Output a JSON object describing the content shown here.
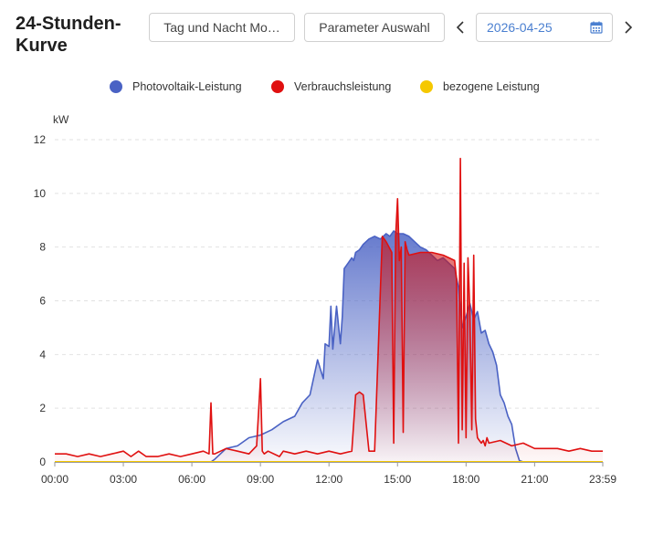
{
  "header": {
    "title": "24-Stunden-Kurve",
    "daynight_button": "Tag und Nacht Mo…",
    "params_button": "Parameter Auswahl",
    "date_value": "2026-04-25"
  },
  "legend": {
    "items": [
      {
        "label": "Photovoltaik-Leistung",
        "color": "#4a62c4"
      },
      {
        "label": "Verbrauchsleistung",
        "color": "#e01010"
      },
      {
        "label": "bezogene Leistung",
        "color": "#f5c800"
      }
    ]
  },
  "chart_data": {
    "type": "area",
    "title": "",
    "xlabel": "",
    "ylabel": "kW",
    "xlim": [
      "00:00",
      "23:59"
    ],
    "ylim": [
      0,
      12
    ],
    "y_ticks": [
      "0",
      "2",
      "4",
      "6",
      "8",
      "10",
      "12"
    ],
    "x_ticks": [
      "00:00",
      "03:00",
      "06:00",
      "09:00",
      "12:00",
      "15:00",
      "18:00",
      "21:00",
      "23:59"
    ],
    "grid": "horizontal dashed",
    "legend_position": "top",
    "series": [
      {
        "name": "Photovoltaik-Leistung",
        "color": "#4a62c4",
        "x": [
          "00:00",
          "06:50",
          "07:00",
          "07:30",
          "08:00",
          "08:30",
          "09:00",
          "09:30",
          "10:00",
          "10:30",
          "10:50",
          "11:10",
          "11:30",
          "11:45",
          "11:50",
          "12:00",
          "12:05",
          "12:10",
          "12:20",
          "12:30",
          "12:35",
          "12:40",
          "12:50",
          "13:00",
          "13:05",
          "13:10",
          "13:20",
          "13:30",
          "13:45",
          "14:00",
          "14:15",
          "14:30",
          "14:40",
          "14:50",
          "15:00",
          "15:15",
          "15:30",
          "15:45",
          "16:00",
          "16:15",
          "16:30",
          "16:45",
          "17:00",
          "17:15",
          "17:30",
          "17:40",
          "17:50",
          "18:00",
          "18:10",
          "18:20",
          "18:30",
          "18:40",
          "18:50",
          "19:00",
          "19:10",
          "19:20",
          "19:30",
          "19:40",
          "19:50",
          "20:00",
          "20:10",
          "20:20",
          "20:30",
          "20:45",
          "21:00",
          "21:30",
          "23:59"
        ],
        "values": [
          0,
          0,
          0.1,
          0.5,
          0.6,
          0.9,
          1.0,
          1.2,
          1.5,
          1.7,
          2.2,
          2.5,
          3.8,
          3.1,
          4.4,
          4.3,
          5.8,
          4.2,
          5.8,
          4.4,
          5.4,
          7.2,
          7.4,
          7.6,
          7.5,
          7.8,
          7.9,
          8.1,
          8.3,
          8.4,
          8.3,
          8.5,
          8.4,
          8.6,
          8.5,
          8.5,
          8.4,
          8.2,
          8.0,
          7.9,
          7.7,
          7.5,
          7.6,
          7.4,
          7.2,
          6.5,
          5.0,
          5.4,
          5.9,
          5.3,
          5.6,
          4.8,
          4.9,
          4.4,
          4.1,
          3.6,
          2.5,
          2.2,
          1.7,
          1.4,
          0.5,
          0.05,
          0,
          0,
          0,
          0,
          0
        ]
      },
      {
        "name": "Verbrauchsleistung",
        "color": "#e01010",
        "x": [
          "00:00",
          "00:30",
          "01:00",
          "01:30",
          "02:00",
          "02:30",
          "03:00",
          "03:20",
          "03:40",
          "04:00",
          "04:30",
          "05:00",
          "05:30",
          "06:00",
          "06:30",
          "06:45",
          "06:50",
          "06:55",
          "07:00",
          "07:30",
          "08:00",
          "08:30",
          "08:50",
          "09:00",
          "09:05",
          "09:10",
          "09:20",
          "09:50",
          "10:00",
          "10:30",
          "11:00",
          "11:30",
          "12:00",
          "12:30",
          "13:00",
          "13:10",
          "13:20",
          "13:30",
          "13:45",
          "14:00",
          "14:20",
          "14:30",
          "14:45",
          "14:50",
          "14:55",
          "15:00",
          "15:05",
          "15:10",
          "15:15",
          "15:20",
          "15:25",
          "15:30",
          "16:00",
          "16:30",
          "17:00",
          "17:15",
          "17:30",
          "17:35",
          "17:40",
          "17:45",
          "17:50",
          "17:55",
          "18:00",
          "18:05",
          "18:10",
          "18:15",
          "18:20",
          "18:25",
          "18:30",
          "18:35",
          "18:40",
          "18:45",
          "18:50",
          "18:55",
          "19:00",
          "19:30",
          "20:00",
          "20:30",
          "21:00",
          "21:30",
          "22:00",
          "22:30",
          "23:00",
          "23:30",
          "23:59"
        ],
        "values": [
          0.3,
          0.3,
          0.2,
          0.3,
          0.2,
          0.3,
          0.4,
          0.2,
          0.4,
          0.2,
          0.2,
          0.3,
          0.2,
          0.3,
          0.4,
          0.3,
          2.2,
          0.3,
          0.3,
          0.5,
          0.4,
          0.3,
          0.6,
          3.1,
          0.4,
          0.3,
          0.4,
          0.2,
          0.4,
          0.3,
          0.4,
          0.3,
          0.4,
          0.3,
          0.4,
          2.5,
          2.6,
          2.5,
          0.4,
          0.4,
          8.4,
          8.2,
          7.8,
          0.7,
          8.4,
          9.8,
          7.5,
          8.0,
          1.1,
          8.2,
          7.9,
          7.7,
          7.8,
          7.8,
          7.7,
          7.6,
          7.5,
          6.8,
          0.7,
          11.3,
          1.2,
          7.4,
          0.9,
          7.6,
          5.6,
          1.2,
          7.7,
          1.6,
          0.9,
          0.8,
          0.7,
          0.8,
          0.6,
          0.9,
          0.7,
          0.8,
          0.6,
          0.7,
          0.5,
          0.5,
          0.5,
          0.4,
          0.5,
          0.4,
          0.4
        ]
      },
      {
        "name": "bezogene Leistung",
        "color": "#f5c800",
        "x": [
          "00:00",
          "23:59"
        ],
        "values": [
          0,
          0
        ]
      }
    ]
  }
}
